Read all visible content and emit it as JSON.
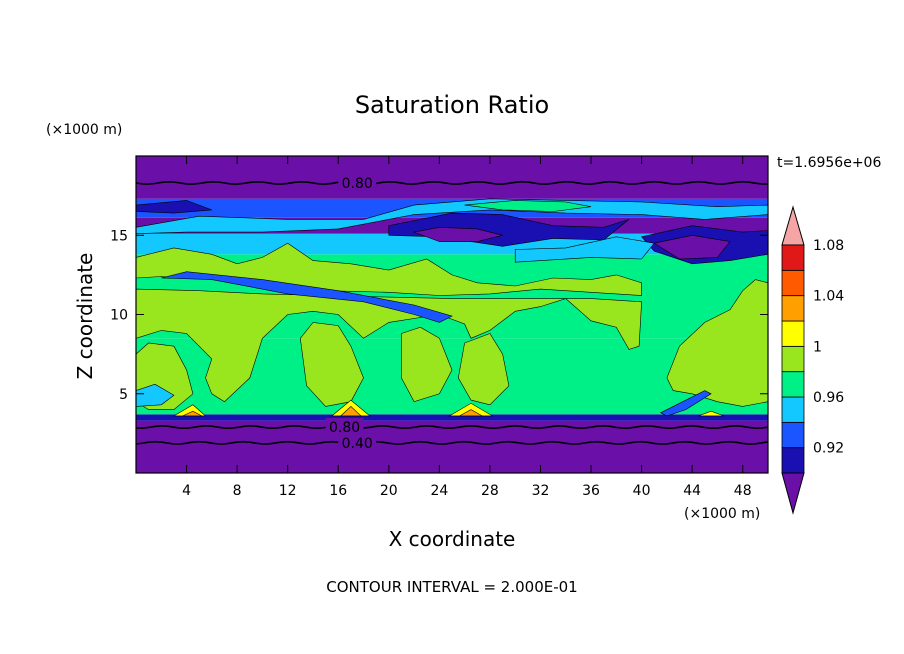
{
  "chart_data": {
    "type": "heatmap",
    "title": "Saturation Ratio",
    "xlabel": "X coordinate",
    "ylabel": "Z coordinate",
    "x_unit_label": "(×1000 m)",
    "y_unit_label": "(×1000 m)",
    "time_label": "t=1.6956e+06",
    "footer": "CONTOUR INTERVAL = 2.000E-01",
    "xlim": [
      0,
      50
    ],
    "ylim": [
      0,
      20
    ],
    "x_ticks": [
      4,
      8,
      12,
      16,
      20,
      24,
      28,
      32,
      36,
      40,
      44,
      48
    ],
    "y_ticks": [
      5,
      10,
      15
    ],
    "colorbar": {
      "levels": [
        0.92,
        0.96,
        1,
        1.04,
        1.08
      ],
      "level_labels": [
        "0.92",
        "0.96",
        "1",
        "1.04",
        "1.08"
      ],
      "colors": [
        "#6a0fa8",
        "#1a0fb0",
        "#1a55ff",
        "#12c8ff",
        "#00f088",
        "#9ae61e",
        "#ffff00",
        "#ffa000",
        "#ff5a00",
        "#e01818",
        "#f5a5a5"
      ]
    },
    "contour_lines": [
      {
        "label": "0.80",
        "z": 18.3,
        "label_x": 17.5
      },
      {
        "label": "0.80",
        "z": 2.9,
        "label_x": 16.5
      },
      {
        "label": "0.40",
        "z": 1.9,
        "label_x": 17.5
      }
    ],
    "bands": [
      {
        "z0": 0,
        "z1": 3.3,
        "color_index": 0
      },
      {
        "z0": 3.3,
        "z1": 3.7,
        "color_index": 1
      },
      {
        "z0": 3.7,
        "z1": 8.5,
        "color_index": 4
      },
      {
        "z0": 8.5,
        "z1": 13.8,
        "color_index": 4
      },
      {
        "z0": 13.8,
        "z1": 15.1,
        "color_index": 3
      },
      {
        "z0": 15.1,
        "z1": 16.1,
        "color_index": 0
      },
      {
        "z0": 16.1,
        "z1": 17.3,
        "color_index": 2
      },
      {
        "z0": 17.3,
        "z1": 20,
        "color_index": 0
      }
    ],
    "regions": [
      {
        "color_index": 5,
        "pts": [
          [
            0,
            13.6
          ],
          [
            3,
            14.2
          ],
          [
            6,
            13.8
          ],
          [
            8,
            13.2
          ],
          [
            10,
            13.6
          ],
          [
            12,
            14.5
          ],
          [
            14,
            13.4
          ],
          [
            17,
            13.2
          ],
          [
            20,
            12.8
          ],
          [
            23,
            13.5
          ],
          [
            25,
            12.5
          ],
          [
            27,
            12
          ],
          [
            30,
            11.8
          ],
          [
            33,
            12.3
          ],
          [
            36,
            12.2
          ],
          [
            38,
            12.5
          ],
          [
            40,
            12
          ],
          [
            40,
            11.2
          ],
          [
            36,
            11.4
          ],
          [
            32,
            11.6
          ],
          [
            28,
            11.3
          ],
          [
            24,
            11.2
          ],
          [
            20,
            11.4
          ],
          [
            15,
            11.5
          ],
          [
            10,
            11.8
          ],
          [
            6,
            12.2
          ],
          [
            2,
            12.4
          ],
          [
            0,
            12.3
          ]
        ]
      },
      {
        "color_index": 5,
        "pts": [
          [
            0,
            8.5
          ],
          [
            2,
            9
          ],
          [
            4,
            8.8
          ],
          [
            5,
            8
          ],
          [
            6,
            7.2
          ],
          [
            5.5,
            6
          ],
          [
            6,
            5
          ],
          [
            7,
            4.5
          ],
          [
            9,
            6
          ],
          [
            10,
            8.5
          ],
          [
            12,
            10
          ],
          [
            14,
            10.2
          ],
          [
            16,
            10
          ],
          [
            18,
            8.5
          ],
          [
            20,
            9.5
          ],
          [
            24,
            10
          ],
          [
            26,
            9.4
          ],
          [
            26.5,
            8.5
          ],
          [
            28,
            9
          ],
          [
            30,
            10.2
          ],
          [
            32,
            10.5
          ],
          [
            34,
            11
          ],
          [
            35,
            10.3
          ],
          [
            36,
            9.6
          ],
          [
            38,
            9.2
          ],
          [
            39,
            7.8
          ],
          [
            39.8,
            8
          ],
          [
            40,
            10.8
          ],
          [
            36,
            11
          ],
          [
            30,
            11
          ],
          [
            25,
            11
          ],
          [
            20,
            11.1
          ],
          [
            15,
            11.2
          ],
          [
            10,
            11.3
          ],
          [
            5,
            11.5
          ],
          [
            0,
            11.6
          ]
        ]
      },
      {
        "color_index": 5,
        "pts": [
          [
            0,
            7.5
          ],
          [
            1,
            8.2
          ],
          [
            3,
            8
          ],
          [
            4,
            6.5
          ],
          [
            4.5,
            5
          ],
          [
            3,
            4
          ],
          [
            1,
            4
          ],
          [
            0,
            4.5
          ]
        ]
      },
      {
        "color_index": 5,
        "pts": [
          [
            13,
            8.5
          ],
          [
            14,
            9.5
          ],
          [
            16,
            9.3
          ],
          [
            17,
            8
          ],
          [
            18,
            6
          ],
          [
            17,
            4.5
          ],
          [
            15,
            4.2
          ],
          [
            13.5,
            5.5
          ]
        ]
      },
      {
        "color_index": 5,
        "pts": [
          [
            21,
            8.8
          ],
          [
            22.5,
            9.2
          ],
          [
            24,
            8.5
          ],
          [
            25,
            6.5
          ],
          [
            24,
            5
          ],
          [
            22,
            4.5
          ],
          [
            21,
            6
          ]
        ]
      },
      {
        "color_index": 5,
        "pts": [
          [
            26,
            8.2
          ],
          [
            28,
            8.8
          ],
          [
            29,
            7.5
          ],
          [
            29.5,
            5.5
          ],
          [
            28,
            4.3
          ],
          [
            26.5,
            4.6
          ],
          [
            25.5,
            6
          ]
        ]
      },
      {
        "color_index": 5,
        "pts": [
          [
            42,
            6
          ],
          [
            43,
            8
          ],
          [
            45,
            9.5
          ],
          [
            47,
            10.3
          ],
          [
            48,
            11.5
          ],
          [
            49,
            12.2
          ],
          [
            50,
            12
          ],
          [
            50,
            4.5
          ],
          [
            48,
            4.2
          ],
          [
            46,
            4.5
          ],
          [
            44,
            5
          ],
          [
            42.5,
            5.2
          ]
        ]
      },
      {
        "color_index": 2,
        "pts": [
          [
            2,
            12.3
          ],
          [
            6,
            12.2
          ],
          [
            12,
            11.3
          ],
          [
            18,
            10.8
          ],
          [
            22,
            10
          ],
          [
            24,
            9.5
          ],
          [
            25,
            9.9
          ],
          [
            22,
            10.6
          ],
          [
            16,
            11.5
          ],
          [
            10,
            12.2
          ],
          [
            4,
            12.7
          ]
        ]
      },
      {
        "color_index": 1,
        "pts": [
          [
            0,
            16.9
          ],
          [
            4,
            17.2
          ],
          [
            6,
            16.6
          ],
          [
            3,
            16.4
          ],
          [
            0,
            16.5
          ]
        ]
      },
      {
        "color_index": 1,
        "pts": [
          [
            20,
            15.6
          ],
          [
            25,
            16.4
          ],
          [
            29,
            16.3
          ],
          [
            33,
            15.6
          ],
          [
            37,
            15.5
          ],
          [
            39,
            16
          ],
          [
            37,
            14.7
          ],
          [
            33,
            14.8
          ],
          [
            29,
            14.3
          ],
          [
            24,
            14.9
          ],
          [
            20,
            15
          ]
        ]
      },
      {
        "color_index": 1,
        "pts": [
          [
            40,
            14.9
          ],
          [
            44,
            15.6
          ],
          [
            48,
            15.2
          ],
          [
            50,
            15.3
          ],
          [
            50,
            13.8
          ],
          [
            47,
            13.4
          ],
          [
            44,
            13.2
          ],
          [
            41,
            14
          ]
        ]
      },
      {
        "color_index": 0,
        "pts": [
          [
            22,
            15.2
          ],
          [
            24,
            15.5
          ],
          [
            27,
            15.4
          ],
          [
            29,
            15
          ],
          [
            27,
            14.6
          ],
          [
            24,
            14.6
          ]
        ]
      },
      {
        "color_index": 0,
        "pts": [
          [
            41,
            14.5
          ],
          [
            44,
            15
          ],
          [
            47,
            14.6
          ],
          [
            46,
            13.6
          ],
          [
            43,
            13.5
          ]
        ]
      },
      {
        "color_index": 3,
        "pts": [
          [
            0,
            15.5
          ],
          [
            5,
            16.2
          ],
          [
            12,
            16
          ],
          [
            18,
            16
          ],
          [
            22,
            16.9
          ],
          [
            28,
            17.3
          ],
          [
            34,
            17.2
          ],
          [
            40,
            17.1
          ],
          [
            46,
            16.8
          ],
          [
            50,
            16.9
          ],
          [
            50,
            16.3
          ],
          [
            45,
            16
          ],
          [
            40,
            16.3
          ],
          [
            34,
            16.4
          ],
          [
            28,
            16.6
          ],
          [
            22,
            16.3
          ],
          [
            16,
            15.4
          ],
          [
            10,
            15.2
          ],
          [
            4,
            15.2
          ],
          [
            0,
            15.1
          ]
        ]
      },
      {
        "color_index": 4,
        "pts": [
          [
            26,
            16.9
          ],
          [
            30,
            17.2
          ],
          [
            34,
            17.1
          ],
          [
            36,
            16.8
          ],
          [
            33,
            16.5
          ],
          [
            29,
            16.6
          ]
        ]
      },
      {
        "color_index": 3,
        "pts": [
          [
            30,
            13.3
          ],
          [
            36,
            13.6
          ],
          [
            40,
            13.5
          ],
          [
            41,
            14.5
          ],
          [
            38,
            14.9
          ],
          [
            34,
            14.2
          ],
          [
            30,
            14.1
          ]
        ]
      },
      {
        "color_index": 3,
        "pts": [
          [
            0,
            4.2
          ],
          [
            2,
            4.3
          ],
          [
            3,
            4.9
          ],
          [
            1.5,
            5.6
          ],
          [
            0,
            5.2
          ]
        ]
      },
      {
        "color_index": 6,
        "pts": [
          [
            3,
            3.6
          ],
          [
            4.5,
            4.3
          ],
          [
            5.5,
            3.6
          ]
        ]
      },
      {
        "color_index": 6,
        "pts": [
          [
            15.5,
            3.6
          ],
          [
            17,
            4.6
          ],
          [
            18.5,
            3.6
          ]
        ]
      },
      {
        "color_index": 6,
        "pts": [
          [
            24.8,
            3.6
          ],
          [
            26.5,
            4.4
          ],
          [
            28.2,
            3.6
          ]
        ]
      },
      {
        "color_index": 6,
        "pts": [
          [
            44.5,
            3.6
          ],
          [
            45.5,
            3.9
          ],
          [
            46.5,
            3.6
          ]
        ]
      },
      {
        "color_index": 7,
        "pts": [
          [
            16.2,
            3.6
          ],
          [
            17,
            4.2
          ],
          [
            17.8,
            3.6
          ]
        ]
      },
      {
        "color_index": 7,
        "pts": [
          [
            25.6,
            3.6
          ],
          [
            26.5,
            4
          ],
          [
            27.4,
            3.6
          ]
        ]
      },
      {
        "color_index": 7,
        "pts": [
          [
            3.7,
            3.6
          ],
          [
            4.5,
            3.9
          ],
          [
            5.2,
            3.6
          ]
        ]
      },
      {
        "color_index": 2,
        "pts": [
          [
            41.5,
            3.8
          ],
          [
            43,
            4.4
          ],
          [
            45,
            5.2
          ],
          [
            45.5,
            5
          ],
          [
            43.5,
            4
          ],
          [
            42,
            3.6
          ]
        ]
      }
    ]
  }
}
